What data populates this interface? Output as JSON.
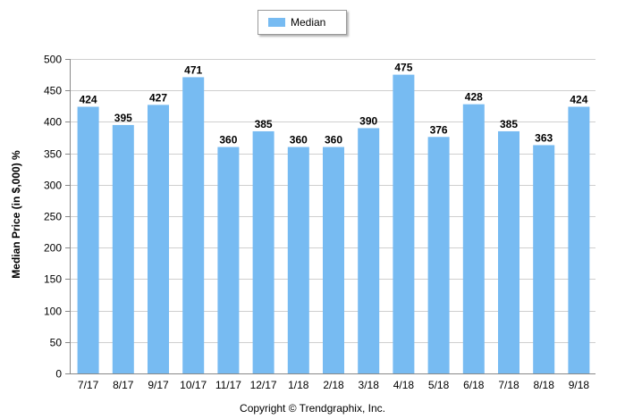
{
  "chart_data": {
    "type": "bar",
    "categories": [
      "7/17",
      "8/17",
      "9/17",
      "10/17",
      "11/17",
      "12/17",
      "1/18",
      "2/18",
      "3/18",
      "4/18",
      "5/18",
      "6/18",
      "7/18",
      "8/18",
      "9/18"
    ],
    "series": [
      {
        "name": "Median",
        "values": [
          424,
          395,
          427,
          471,
          360,
          385,
          360,
          360,
          390,
          475,
          376,
          428,
          385,
          363,
          424
        ]
      }
    ],
    "ylabel": "Median Price (in $,000) %",
    "ylim": [
      0,
      500
    ],
    "yticks": [
      0,
      50,
      100,
      150,
      200,
      250,
      300,
      350,
      400,
      450,
      500
    ],
    "grid": true,
    "legend": "top-center",
    "bar_color": "#77bbf2",
    "data_labels": true
  },
  "footer": {
    "copyright": "Copyright © Trendgraphix, Inc."
  }
}
